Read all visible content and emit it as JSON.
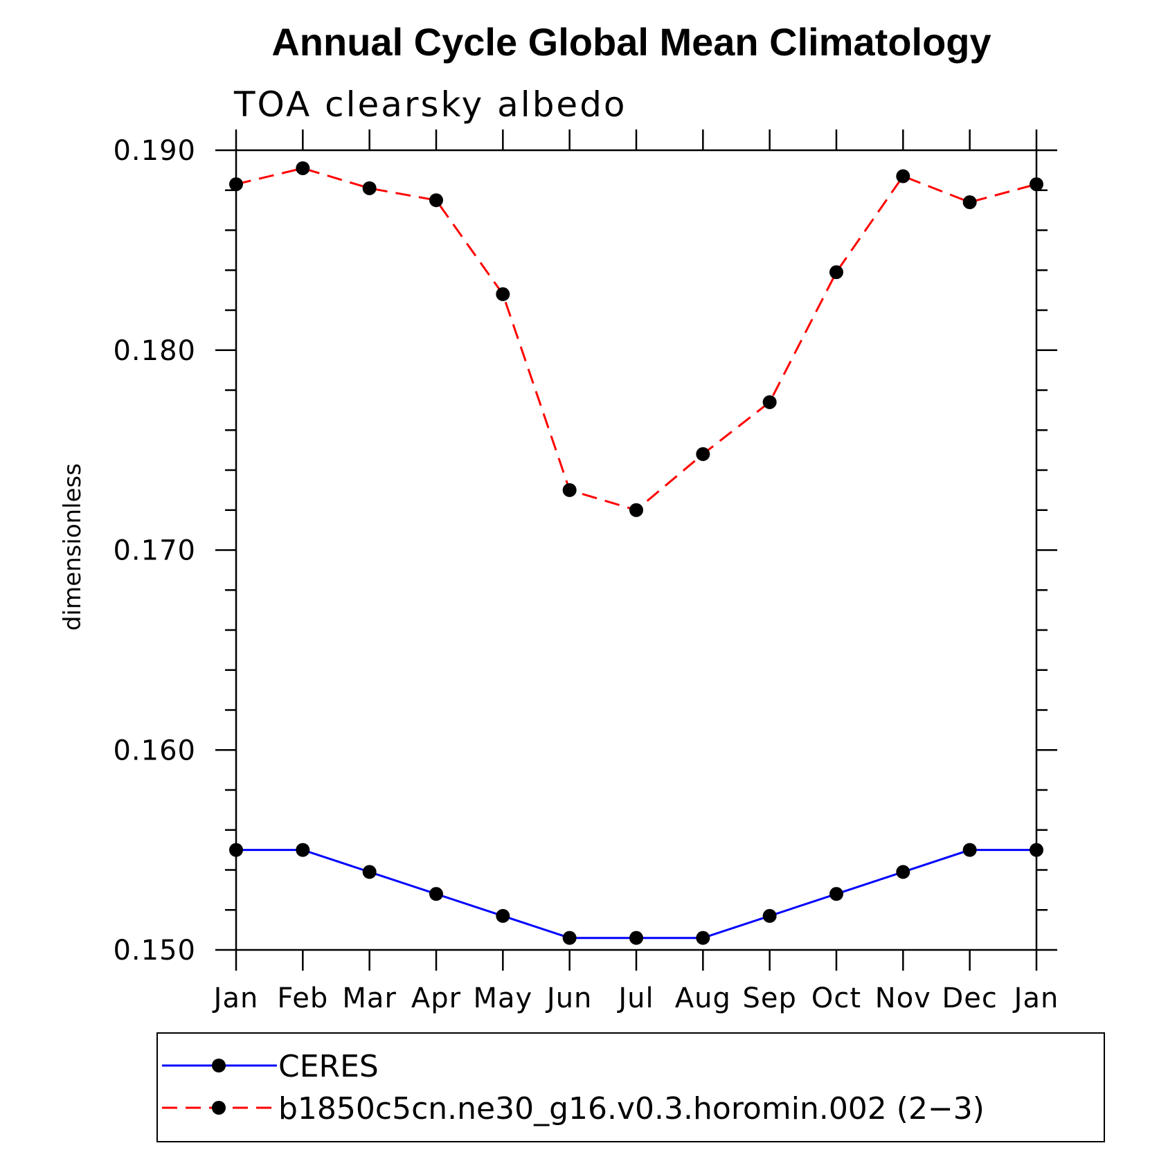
{
  "chart_data": {
    "type": "line",
    "title": "Annual Cycle Global Mean Climatology",
    "subtitle": "TOA clearsky albedo",
    "xlabel": "",
    "ylabel": "dimensionless",
    "categories": [
      "Jan",
      "Feb",
      "Mar",
      "Apr",
      "May",
      "Jun",
      "Jul",
      "Aug",
      "Sep",
      "Oct",
      "Nov",
      "Dec",
      "Jan"
    ],
    "ylim": [
      0.15,
      0.19
    ],
    "yticks": [
      "0.150",
      "0.160",
      "0.170",
      "0.180",
      "0.190"
    ],
    "ytick_values": [
      0.15,
      0.16,
      0.17,
      0.18,
      0.19
    ],
    "grid": false,
    "legend_position": "bottom",
    "series": [
      {
        "name": "CERES",
        "color": "#0000ff",
        "line_style": "solid",
        "marker": "filled-circle",
        "values": [
          0.155,
          0.155,
          0.1539,
          0.1528,
          0.1517,
          0.1506,
          0.1506,
          0.1506,
          0.1517,
          0.1528,
          0.1539,
          0.155,
          0.155
        ]
      },
      {
        "name": "b1850c5cn.ne30_g16.v0.3.horomin.002 (2−3)",
        "color": "#ff0000",
        "line_style": "dashed",
        "marker": "filled-circle",
        "values": [
          0.1883,
          0.1891,
          0.1881,
          0.1875,
          0.1828,
          0.173,
          0.172,
          0.1748,
          0.1774,
          0.1839,
          0.1887,
          0.1874,
          0.1883
        ]
      }
    ]
  }
}
